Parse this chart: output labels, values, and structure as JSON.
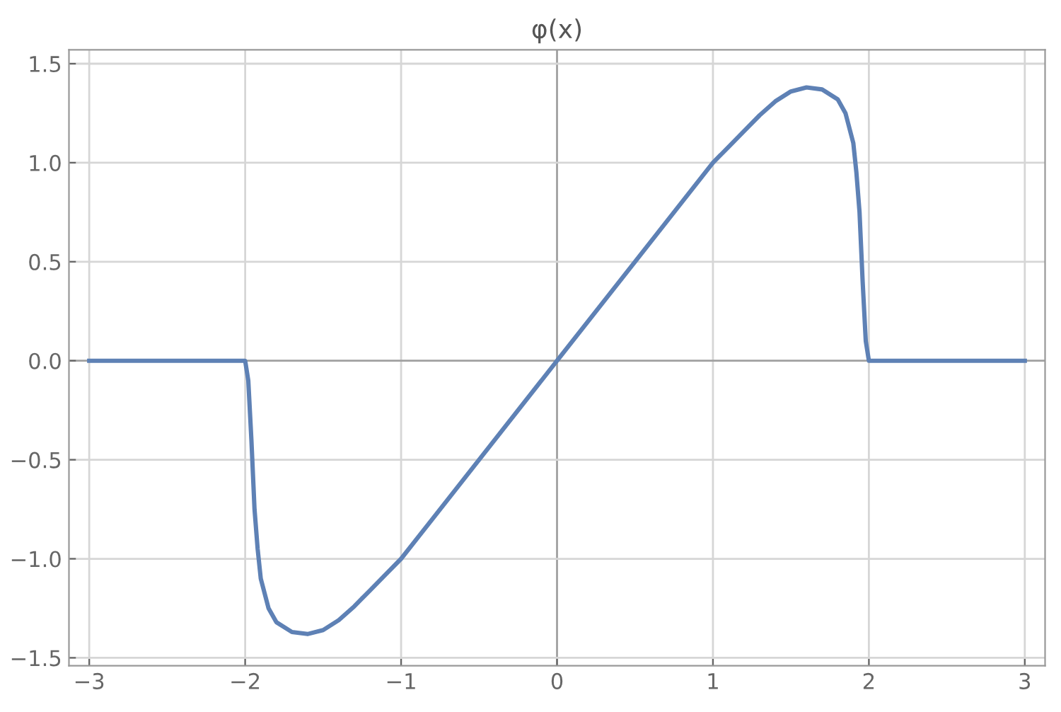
{
  "chart_data": {
    "type": "line",
    "title": "φ(x)",
    "series": [
      {
        "color": "#5e81b5",
        "x": [
          -3,
          -2.5,
          -2.0,
          -1.98,
          -1.96,
          -1.94,
          -1.92,
          -1.9,
          -1.85,
          -1.8,
          -1.7,
          -1.6,
          -1.5,
          -1.4,
          -1.3,
          -1.2,
          -1.1,
          -1.0,
          -0.8,
          -0.5,
          0,
          0.5,
          0.8,
          1.0,
          1.1,
          1.2,
          1.3,
          1.4,
          1.5,
          1.6,
          1.7,
          1.8,
          1.85,
          1.9,
          1.92,
          1.94,
          1.96,
          1.98,
          2.0,
          2.5,
          3
        ],
        "values": [
          0,
          0,
          0,
          -0.1,
          -0.4,
          -0.75,
          -0.95,
          -1.1,
          -1.25,
          -1.32,
          -1.37,
          -1.38,
          -1.36,
          -1.31,
          -1.24,
          -1.16,
          -1.08,
          -1.0,
          -0.8,
          -0.5,
          0,
          0.5,
          0.8,
          1.0,
          1.08,
          1.16,
          1.24,
          1.31,
          1.36,
          1.38,
          1.37,
          1.32,
          1.25,
          1.1,
          0.95,
          0.75,
          0.4,
          0.1,
          0,
          0,
          0
        ]
      }
    ],
    "xlim": [
      -3.13,
      3.13
    ],
    "ylim": [
      -1.54,
      1.57
    ],
    "xticks": [
      {
        "value": -3,
        "label": "−3"
      },
      {
        "value": -2,
        "label": "−2"
      },
      {
        "value": -1,
        "label": "−1"
      },
      0,
      1,
      2,
      3
    ],
    "yticks": [
      {
        "value": -1.5,
        "label": "−1.5"
      },
      {
        "value": -1,
        "label": "−1.0"
      },
      {
        "value": -0.5,
        "label": "−0.5"
      },
      {
        "value": 0,
        "label": "0.0"
      },
      {
        "value": 0.5,
        "label": "0.5"
      },
      {
        "value": 1,
        "label": "1.0"
      },
      {
        "value": 1.5,
        "label": "1.5"
      }
    ],
    "grid": true,
    "marker": "none",
    "line_style": "solid",
    "legend": false
  }
}
